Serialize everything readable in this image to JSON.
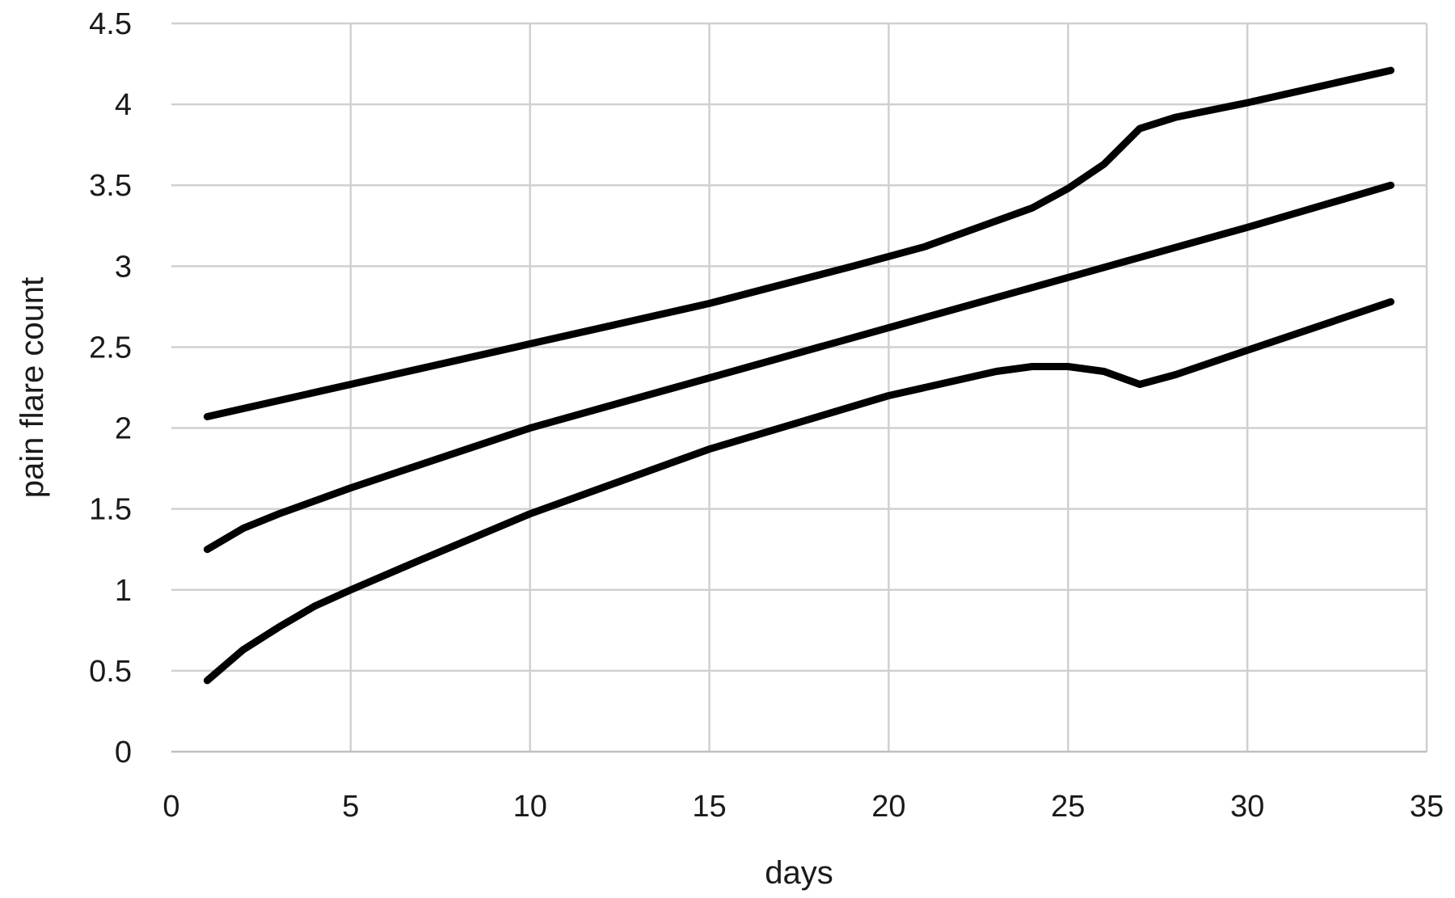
{
  "chart_data": {
    "type": "line",
    "xlabel": "days",
    "ylabel": "pain flare count",
    "xlim": [
      0,
      35
    ],
    "ylim": [
      0,
      4.5
    ],
    "xticks": [
      "0",
      "5",
      "10",
      "15",
      "20",
      "25",
      "30",
      "35"
    ],
    "yticks": [
      "0",
      "0.5",
      "1",
      "1.5",
      "2",
      "2.5",
      "3",
      "3.5",
      "4",
      "4.5"
    ],
    "grid": true,
    "legend": "none",
    "line_color": "#000000",
    "grid_color": "#d0d0d0",
    "series": [
      {
        "x": [
          1,
          5,
          10,
          15,
          19,
          21,
          23,
          24,
          25,
          26,
          27,
          28,
          30,
          32,
          34
        ],
        "values": [
          2.07,
          2.27,
          2.52,
          2.77,
          3.0,
          3.12,
          3.28,
          3.36,
          3.48,
          3.63,
          3.85,
          3.92,
          4.01,
          4.11,
          4.21
        ]
      },
      {
        "x": [
          1,
          2,
          3,
          5,
          10,
          15,
          20,
          25,
          30,
          34
        ],
        "values": [
          1.25,
          1.38,
          1.47,
          1.63,
          2.0,
          2.31,
          2.62,
          2.93,
          3.24,
          3.5
        ]
      },
      {
        "x": [
          1,
          2,
          3,
          4,
          5,
          7,
          10,
          15,
          20,
          22,
          23,
          24,
          25,
          26,
          27,
          28,
          30,
          34
        ],
        "values": [
          0.44,
          0.63,
          0.77,
          0.9,
          1.0,
          1.19,
          1.47,
          1.87,
          2.2,
          2.3,
          2.35,
          2.38,
          2.38,
          2.35,
          2.27,
          2.33,
          2.48,
          2.78
        ]
      }
    ]
  }
}
